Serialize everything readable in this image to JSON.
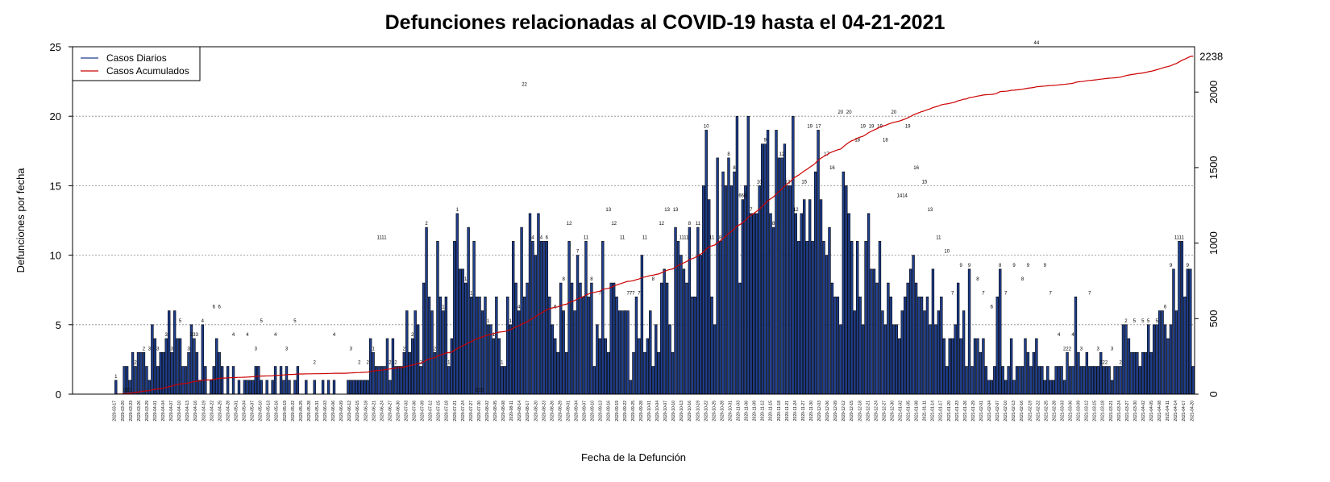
{
  "chart_data": {
    "type": "bar",
    "title": "Defunciones relacionadas al COVID-19 hasta el 04-21-2021",
    "xlabel": "Fecha de la Defunción",
    "ylabel": "Defunciones por fecha",
    "ylim": [
      0,
      25
    ],
    "y_ticks": [
      0,
      5,
      10,
      15,
      20,
      25
    ],
    "y2lim": [
      0,
      2300
    ],
    "y2_ticks": [
      0,
      500,
      1000,
      1500,
      2000
    ],
    "grid": "horizontal dashed",
    "legend_position": "top-left",
    "colors": {
      "bars": "#1f3f8f",
      "bar_edge": "#000000",
      "cumulative": "#cc0000",
      "grid": "#888888"
    },
    "x_start": "2020-03-17",
    "x_end": "2021-04-20",
    "date_tick_labels": [
      "2020-03-17",
      "2020-03-20",
      "2020-03-23",
      "2020-03-26",
      "2020-03-29",
      "2020-04-01",
      "2020-04-04",
      "2020-04-07",
      "2020-04-10",
      "2020-04-13",
      "2020-04-16",
      "2020-04-19",
      "2020-04-22",
      "2020-04-25",
      "2020-04-28",
      "2020-05-01",
      "2020-05-04",
      "2020-05-07",
      "2020-05-10",
      "2020-05-13",
      "2020-05-16",
      "2020-05-19",
      "2020-05-22",
      "2020-05-25",
      "2020-05-28",
      "2020-05-31",
      "2020-06-03",
      "2020-06-06",
      "2020-06-09",
      "2020-06-12",
      "2020-06-15",
      "2020-06-18",
      "2020-06-21",
      "2020-06-24",
      "2020-06-27",
      "2020-06-30",
      "2020-07-03",
      "2020-07-06",
      "2020-07-09",
      "2020-07-12",
      "2020-07-15",
      "2020-07-18",
      "2020-07-21",
      "2020-07-24",
      "2020-07-27",
      "2020-07-30",
      "2020-08-02",
      "2020-08-05",
      "2020-08-08",
      "2020-08-11",
      "2020-08-14",
      "2020-08-17",
      "2020-08-20",
      "2020-08-23",
      "2020-08-26",
      "2020-08-29",
      "2020-09-01",
      "2020-09-04",
      "2020-09-07",
      "2020-09-10",
      "2020-09-13",
      "2020-09-16",
      "2020-09-19",
      "2020-09-22",
      "2020-09-25",
      "2020-09-28",
      "2020-10-01",
      "2020-10-04",
      "2020-10-07",
      "2020-10-10",
      "2020-10-13",
      "2020-10-16",
      "2020-10-19",
      "2020-10-22",
      "2020-10-25",
      "2020-10-28",
      "2020-10-31",
      "2020-11-03",
      "2020-11-06",
      "2020-11-09",
      "2020-11-12",
      "2020-11-15",
      "2020-11-18",
      "2020-11-21",
      "2020-11-24",
      "2020-11-27",
      "2020-11-30",
      "2020-12-03",
      "2020-12-06",
      "2020-12-09",
      "2020-12-12",
      "2020-12-15",
      "2020-12-18",
      "2020-12-21",
      "2020-12-24",
      "2020-12-27",
      "2020-12-30",
      "2021-01-02",
      "2021-01-05",
      "2021-01-08",
      "2021-01-11",
      "2021-01-14",
      "2021-01-17",
      "2021-01-20",
      "2021-01-23",
      "2021-01-26",
      "2021-01-29",
      "2021-02-01",
      "2021-02-04",
      "2021-02-07",
      "2021-02-10",
      "2021-02-13",
      "2021-02-16",
      "2021-02-19",
      "2021-02-22",
      "2021-02-25",
      "2021-02-28",
      "2021-03-03",
      "2021-03-06",
      "2021-03-09",
      "2021-03-12",
      "2021-03-15",
      "2021-03-18",
      "2021-03-21",
      "2021-03-24",
      "2021-03-27",
      "2021-03-30",
      "2021-04-02",
      "2021-04-05",
      "2021-04-08",
      "2021-04-11",
      "2021-04-14",
      "2021-04-17",
      "2021-04-20"
    ],
    "series": [
      {
        "name": "Casos Diarios",
        "type": "bar",
        "values": [
          1,
          0,
          0,
          2,
          2,
          1,
          3,
          2,
          3,
          3,
          3,
          2,
          1,
          5,
          4,
          2,
          3,
          3,
          4,
          6,
          3,
          6,
          4,
          4,
          2,
          2,
          3,
          5,
          4,
          3,
          1,
          5,
          2,
          0,
          1,
          2,
          4,
          3,
          2,
          0,
          2,
          0,
          2,
          0,
          1,
          0,
          1,
          1,
          1,
          1,
          2,
          2,
          1,
          0,
          1,
          0,
          1,
          2,
          0,
          2,
          1,
          2,
          1,
          0,
          1,
          2,
          0,
          0,
          1,
          0,
          0,
          1,
          0,
          0,
          1,
          0,
          1,
          0,
          1,
          0,
          0,
          0,
          0,
          1,
          1,
          1,
          1,
          1,
          1,
          1,
          1,
          4,
          3,
          2,
          2,
          2,
          2,
          4,
          1,
          4,
          2,
          2,
          2,
          3,
          6,
          3,
          4,
          6,
          5,
          2,
          8,
          12,
          7,
          6,
          3,
          11,
          7,
          6,
          7,
          2,
          4,
          11,
          13,
          9,
          9,
          8,
          12,
          7,
          11,
          7,
          7,
          6,
          7,
          5,
          5,
          4,
          7,
          4,
          2,
          2,
          7,
          5,
          11,
          8,
          6,
          12,
          7,
          8,
          13,
          11,
          10,
          13,
          11,
          11,
          11,
          7,
          5,
          4,
          3,
          8,
          6,
          3,
          11,
          8,
          6,
          10,
          8,
          7,
          11,
          7,
          8,
          2,
          5,
          4,
          11,
          4,
          3,
          8,
          8,
          7,
          6,
          6,
          6,
          6,
          1,
          3,
          7,
          4,
          10,
          3,
          4,
          6,
          2,
          5,
          3,
          8,
          9,
          8,
          5,
          3,
          12,
          11,
          10,
          9,
          8,
          12,
          7,
          7,
          12,
          10,
          15,
          19,
          14,
          7,
          5,
          17,
          11,
          16,
          15,
          17,
          15,
          16,
          20,
          8,
          14,
          15,
          20,
          13,
          13,
          13,
          15,
          18,
          18,
          19,
          13,
          12,
          19,
          17,
          17,
          18,
          15,
          15,
          20,
          13,
          11,
          13,
          14,
          11,
          14,
          11,
          16,
          19,
          14,
          11,
          10,
          12,
          8,
          7,
          7,
          5,
          16,
          15,
          13,
          11,
          6,
          11,
          7,
          5,
          11,
          13,
          9,
          9,
          8,
          11,
          6,
          5,
          8,
          7,
          5,
          5,
          4,
          6,
          7,
          8,
          9,
          10,
          8,
          7,
          7,
          6,
          7,
          5,
          9,
          5,
          6,
          7,
          4,
          2,
          4,
          4,
          5,
          8,
          4,
          6,
          2,
          9,
          2,
          4,
          4,
          3,
          4,
          2,
          1,
          1,
          2,
          7,
          9,
          2,
          1,
          2,
          4,
          1,
          2,
          2,
          2,
          4,
          3,
          2,
          3,
          4,
          2,
          2,
          1,
          2,
          1,
          1,
          2,
          2,
          2,
          1,
          3,
          2,
          2,
          7,
          3,
          2,
          2,
          3,
          2,
          2,
          2,
          2,
          3,
          2,
          2,
          2,
          1,
          2,
          2,
          2,
          5,
          5,
          4,
          3,
          3,
          3,
          2,
          3,
          3,
          5,
          3,
          5,
          5,
          6,
          6,
          5,
          4,
          5,
          9,
          6,
          11,
          11,
          7,
          9,
          9,
          2
        ]
      },
      {
        "name": "Casos Acumulados",
        "type": "line",
        "axis": "right",
        "final_value": 2238
      }
    ],
    "value_labels": [
      1,
      "000",
      2,
      2,
      3,
      3,
      3,
      3,
      5,
      3,
      "333",
      4,
      6,
      6,
      4,
      4,
      3,
      5,
      4,
      3,
      5,
      2,
      4,
      3,
      2,
      2,
      1,
      "1111",
      2,
      2,
      2,
      2,
      2,
      2,
      2,
      1,
      1,
      1,
      1,
      1,
      "000",
      1,
      1,
      1,
      1,
      4,
      "22",
      4,
      4,
      6,
      6,
      8,
      12,
      7,
      11,
      8,
      7,
      13,
      12,
      11,
      "777",
      7,
      11,
      8,
      12,
      13,
      13,
      "1111",
      8,
      11,
      10,
      11,
      8,
      8,
      8,
      "666",
      7,
      10,
      9,
      8,
      12,
      12,
      12,
      15,
      19,
      17,
      17,
      16,
      20,
      20,
      18,
      19,
      19,
      19,
      18,
      20,
      "1414",
      19,
      16,
      15,
      13,
      11,
      10,
      7,
      9,
      9,
      8,
      7,
      6,
      8,
      7,
      9,
      8,
      9,
      "44",
      9,
      7,
      4,
      "222",
      4,
      3,
      7,
      3,
      "222",
      3,
      2,
      2,
      5,
      5,
      5,
      5,
      6,
      9,
      "1111",
      9,
      2238
    ]
  }
}
